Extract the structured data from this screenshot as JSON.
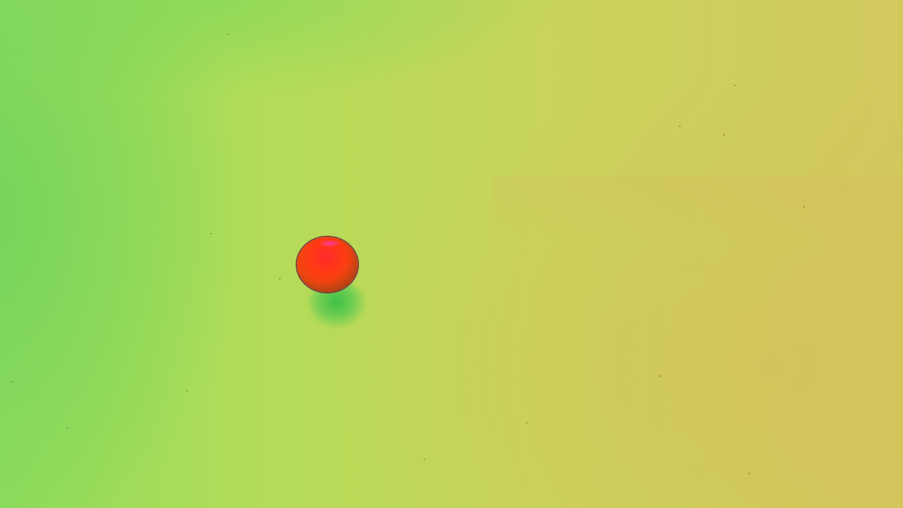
{
  "scene": {
    "subject": "red ball",
    "palette": {
      "background_green": "#8fdc5c",
      "background_yellow": "#c8d45a",
      "background_tan": "#d2c85e",
      "ball_red": "#ff3a14",
      "shadow_green": "#37be46"
    }
  }
}
